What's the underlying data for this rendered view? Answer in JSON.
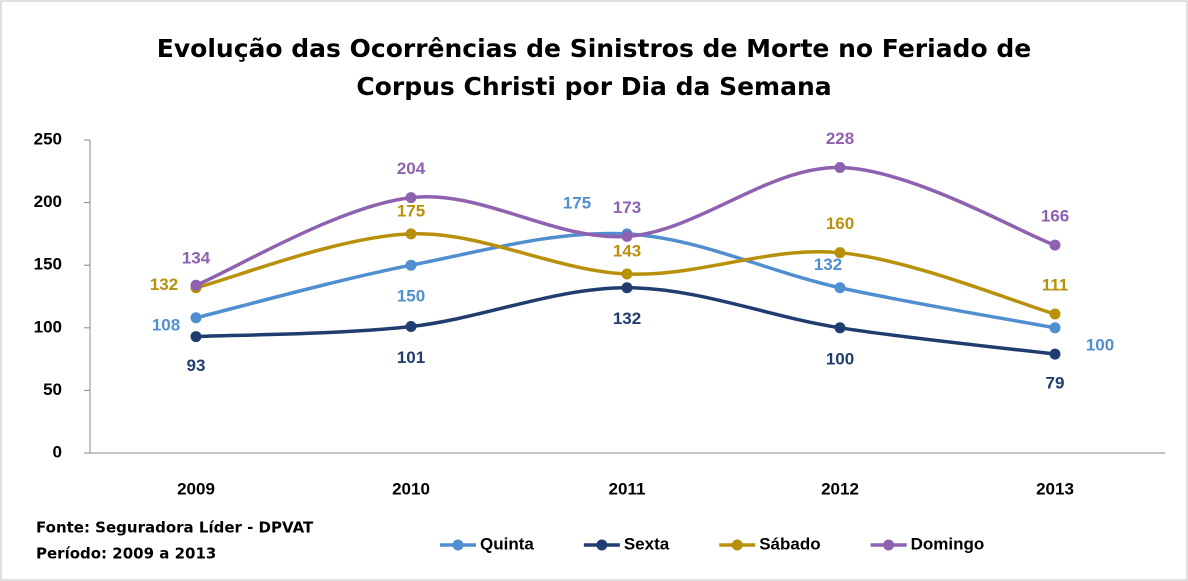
{
  "chart_data": {
    "type": "line",
    "title": "Evolução das Ocorrências de Sinistros de Morte no Feriado de Corpus Christi por Dia da Semana",
    "categories": [
      "2009",
      "2010",
      "2011",
      "2012",
      "2013"
    ],
    "series": [
      {
        "name": "Quinta",
        "color": "#4f8fd0",
        "values": [
          108,
          150,
          175,
          132,
          100
        ]
      },
      {
        "name": "Sexta",
        "color": "#1f3d6e",
        "values": [
          93,
          101,
          132,
          100,
          79
        ]
      },
      {
        "name": "Sábado",
        "color": "#b8900a",
        "values": [
          132,
          175,
          143,
          160,
          111
        ]
      },
      {
        "name": "Domingo",
        "color": "#8e62b0",
        "values": [
          134,
          204,
          173,
          228,
          166
        ]
      }
    ],
    "ylim": [
      0,
      250
    ],
    "yticks": [
      0,
      50,
      100,
      150,
      200,
      250
    ],
    "grid": false,
    "legend": "bottom",
    "smooth": true,
    "notes": [
      "Fonte: Seguradora Líder - DPVAT",
      "Período: 2009 a 2013"
    ]
  }
}
